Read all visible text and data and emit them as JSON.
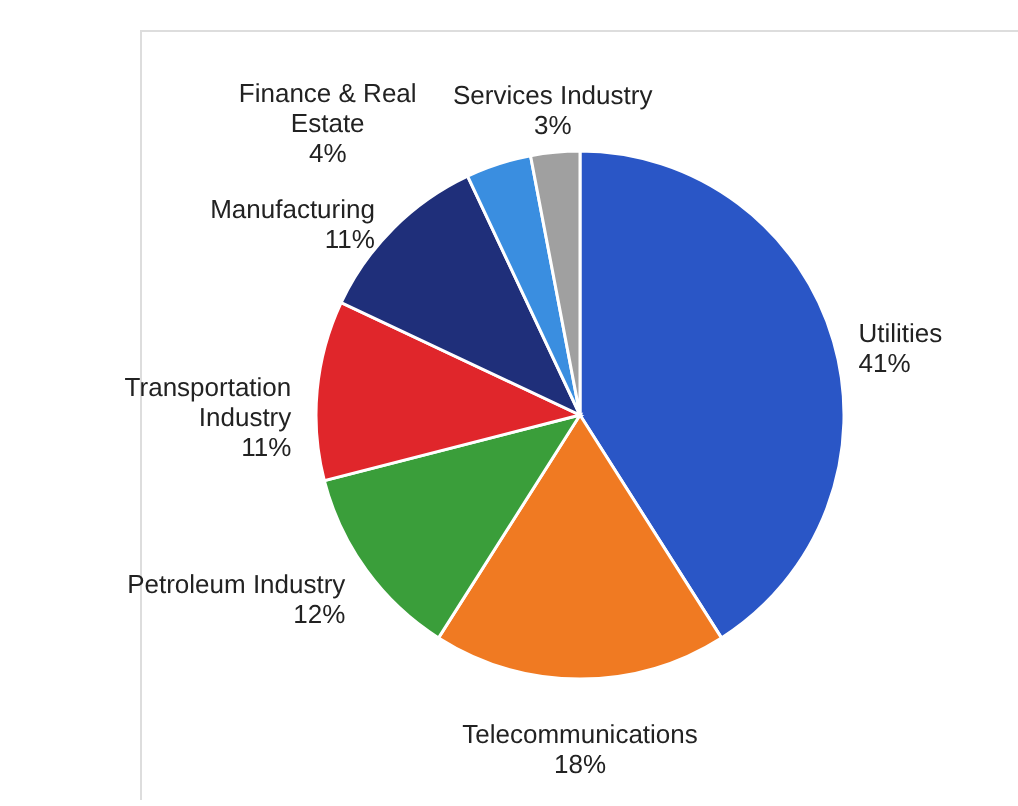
{
  "chart_data": {
    "type": "pie",
    "categories": [
      "Utilities",
      "Telecommunications",
      "Petroleum Industry",
      "Transportation Industry",
      "Manufacturing",
      "Finance & Real Estate",
      "Services Industry"
    ],
    "values": [
      41,
      18,
      12,
      11,
      11,
      4,
      3
    ],
    "value_labels": [
      "41%",
      "18%",
      "12%",
      "11%",
      "11%",
      "4%",
      "3%"
    ],
    "colors": [
      "#2a56c6",
      "#f07a22",
      "#3a9e3a",
      "#e0262b",
      "#1f2f7a",
      "#3a8ee0",
      "#a0a0a0"
    ]
  }
}
